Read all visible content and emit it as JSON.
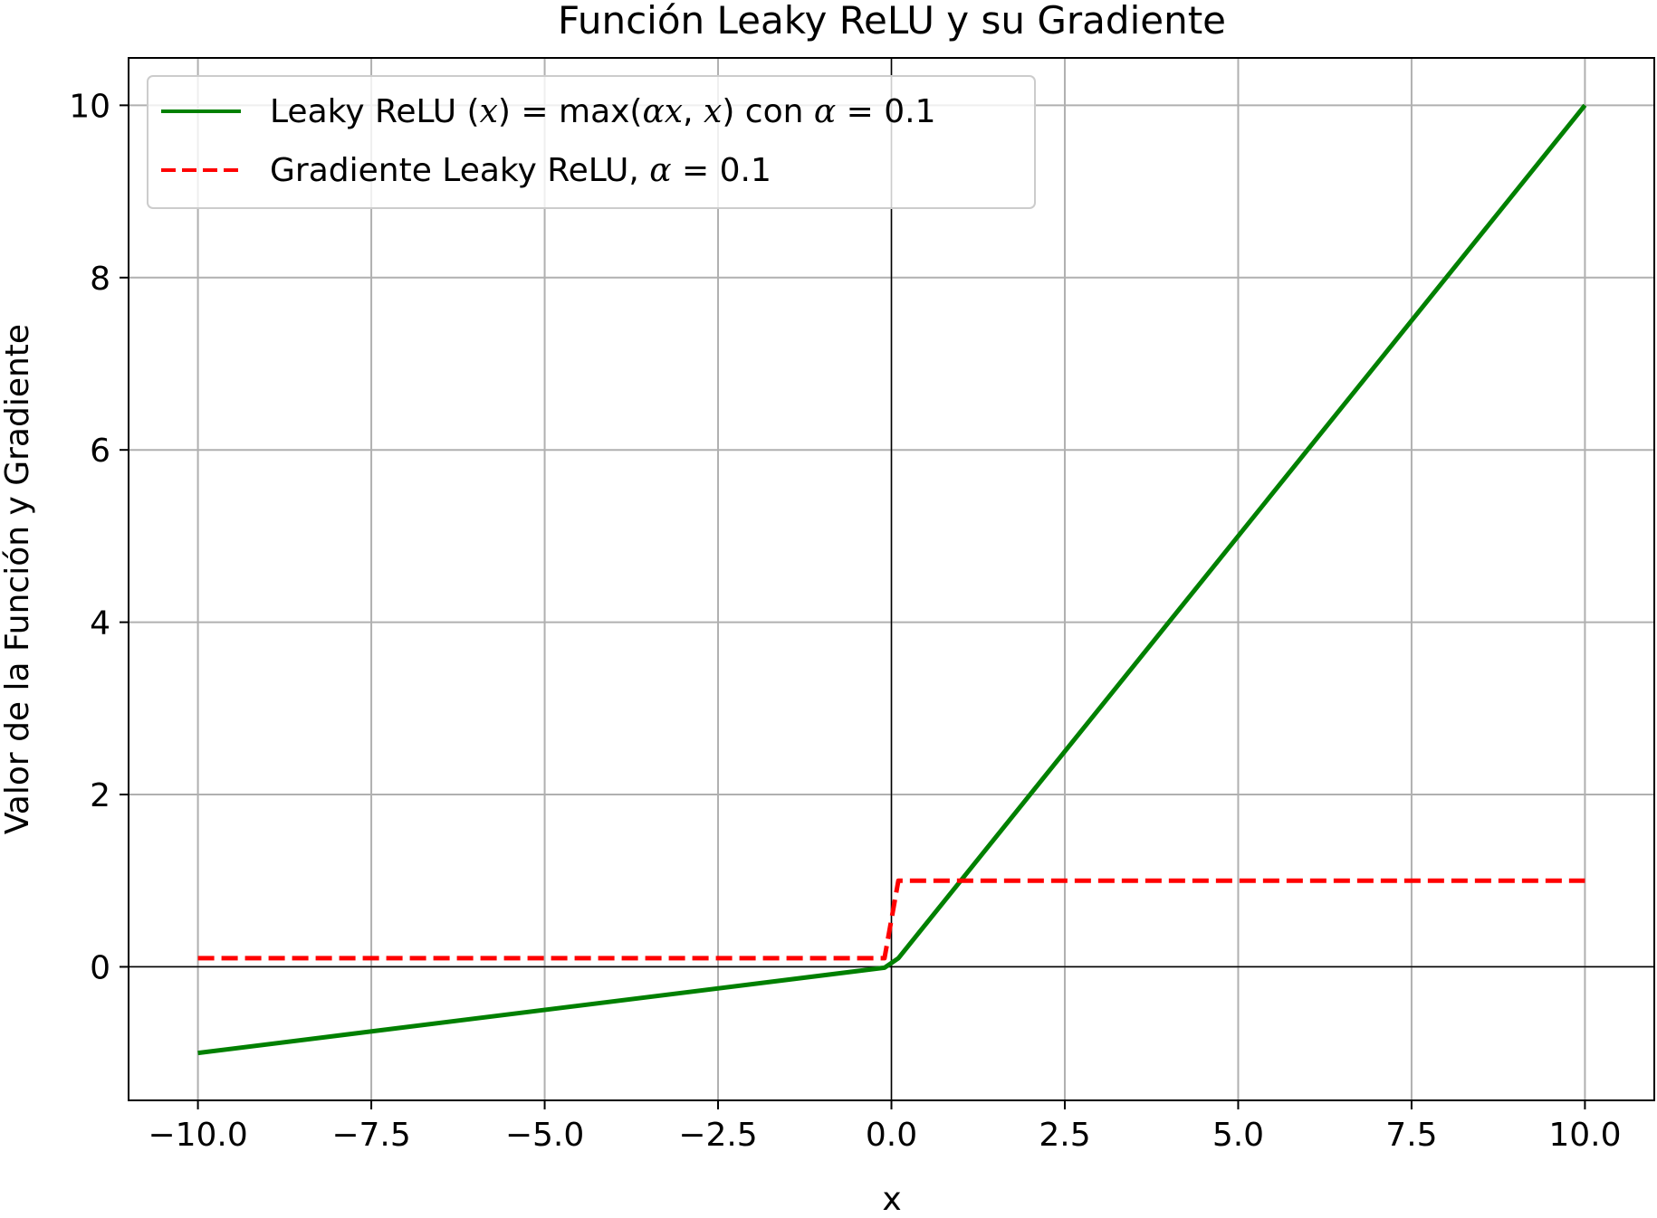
{
  "chart_data": {
    "type": "line",
    "title": "Función Leaky ReLU y su Gradiente",
    "xlabel": "x",
    "ylabel": "Valor de la Función y Gradiente",
    "xlim": [
      -11.0,
      11.0
    ],
    "ylim": [
      -1.55,
      10.55
    ],
    "grid": true,
    "legend_position": "upper-left",
    "x_ticks": [
      -10.0,
      -7.5,
      -5.0,
      -2.5,
      0.0,
      2.5,
      5.0,
      7.5,
      10.0
    ],
    "x_tick_labels": [
      "−10.0",
      "−7.5",
      "−5.0",
      "−2.5",
      "0.0",
      "2.5",
      "5.0",
      "7.5",
      "10.0"
    ],
    "y_ticks": [
      0,
      2,
      4,
      6,
      8,
      10
    ],
    "y_tick_labels": [
      "0",
      "2",
      "4",
      "6",
      "8",
      "10"
    ],
    "reference_lines": {
      "x": 0,
      "y": 0
    },
    "series": [
      {
        "name": "Leaky ReLU (x) = max(αx, x) con α = 0.1",
        "legend_parts": {
          "t1": "Leaky ReLU (",
          "v1": "x",
          "t2": ") = max(",
          "v2": "αx",
          "t3": ", ",
          "v3": "x",
          "t4": ") con ",
          "v4": "α",
          "t5": " = 0.1"
        },
        "color": "#008000",
        "style": "solid",
        "x": [
          -10.0,
          -0.1,
          0.1,
          10.0
        ],
        "y": [
          -1.0,
          -0.01,
          0.1,
          10.0
        ]
      },
      {
        "name": "Gradiente Leaky ReLU, α = 0.1",
        "legend_parts": {
          "t1": "Gradiente Leaky ReLU, ",
          "v1": "α",
          "t2": " = 0.1"
        },
        "color": "#ff0000",
        "style": "dashed",
        "x": [
          -10.0,
          -0.1,
          0.1,
          10.0
        ],
        "y": [
          0.1,
          0.1,
          1.0,
          1.0
        ]
      }
    ]
  }
}
